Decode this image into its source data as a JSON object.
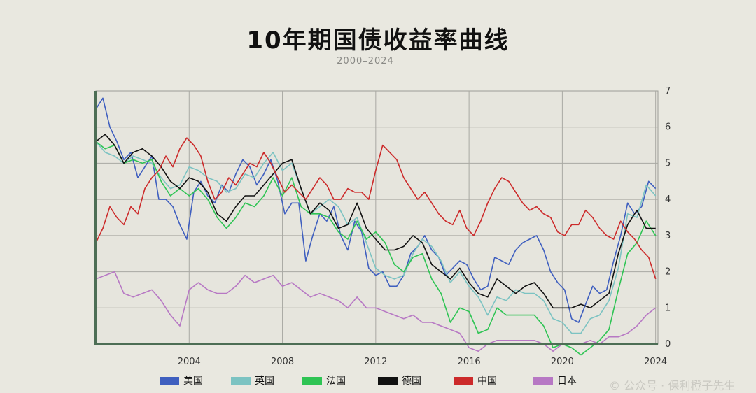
{
  "header": {
    "title": "10年期国债收益率曲线",
    "subtitle": "2000–2024"
  },
  "watermark": "© 公众号 · 保利橙子先生",
  "chart_data": {
    "type": "line",
    "title": "10年期国债收益率曲线",
    "subtitle": "2000–2024",
    "xlim": [
      2000.0,
      2024.1
    ],
    "ylim": [
      0,
      7
    ],
    "x_ticks": [
      "2004",
      "2008",
      "2012",
      "2016",
      "2020",
      "2024"
    ],
    "x_tick_values": [
      2004,
      2008,
      2012,
      2016,
      2020,
      2024
    ],
    "y_ticks": [
      "0",
      "1",
      "2",
      "3",
      "4",
      "5",
      "6",
      "7"
    ],
    "y_axis_side": "right",
    "grid": true,
    "legend_position": "bottom",
    "series": [
      {
        "name": "美国",
        "color": "#3f5fbf",
        "x": [
          2000.0,
          2000.3,
          2000.6,
          2000.9,
          2001.2,
          2001.5,
          2001.8,
          2002.1,
          2002.4,
          2002.7,
          2003.0,
          2003.3,
          2003.6,
          2003.9,
          2004.2,
          2004.5,
          2004.8,
          2005.1,
          2005.4,
          2005.7,
          2006.0,
          2006.3,
          2006.6,
          2006.9,
          2007.2,
          2007.5,
          2007.8,
          2008.1,
          2008.4,
          2008.7,
          2009.0,
          2009.3,
          2009.6,
          2009.9,
          2010.2,
          2010.5,
          2010.8,
          2011.1,
          2011.4,
          2011.7,
          2012.0,
          2012.3,
          2012.6,
          2012.9,
          2013.2,
          2013.5,
          2013.8,
          2014.1,
          2014.4,
          2014.7,
          2015.0,
          2015.3,
          2015.6,
          2015.9,
          2016.2,
          2016.5,
          2016.8,
          2017.1,
          2017.4,
          2017.7,
          2018.0,
          2018.3,
          2018.6,
          2018.9,
          2019.2,
          2019.5,
          2019.8,
          2020.1,
          2020.4,
          2020.7,
          2021.0,
          2021.3,
          2021.6,
          2021.9,
          2022.2,
          2022.5,
          2022.8,
          2023.1,
          2023.4,
          2023.7,
          2024.0
        ],
        "values": [
          6.5,
          6.8,
          6.0,
          5.6,
          5.1,
          5.3,
          4.6,
          4.9,
          5.2,
          4.0,
          4.0,
          3.8,
          3.3,
          2.9,
          4.2,
          4.5,
          4.1,
          3.9,
          4.4,
          4.2,
          4.7,
          5.1,
          4.9,
          4.4,
          4.7,
          5.1,
          4.5,
          3.6,
          3.9,
          3.9,
          2.3,
          3.0,
          3.6,
          3.4,
          3.8,
          3.0,
          2.6,
          3.4,
          3.1,
          2.1,
          1.9,
          2.0,
          1.6,
          1.6,
          1.9,
          2.5,
          2.7,
          3.0,
          2.6,
          2.4,
          1.9,
          2.1,
          2.3,
          2.2,
          1.8,
          1.5,
          1.6,
          2.4,
          2.3,
          2.2,
          2.6,
          2.8,
          2.9,
          3.0,
          2.6,
          2.0,
          1.7,
          1.5,
          0.7,
          0.6,
          1.1,
          1.6,
          1.4,
          1.5,
          2.3,
          3.0,
          3.9,
          3.6,
          3.8,
          4.5,
          4.3
        ]
      },
      {
        "name": "英国",
        "color": "#7cc3c2",
        "x": [
          2000.0,
          2000.4,
          2000.8,
          2001.2,
          2001.6,
          2002.0,
          2002.4,
          2002.8,
          2003.2,
          2003.6,
          2004.0,
          2004.4,
          2004.8,
          2005.2,
          2005.6,
          2006.0,
          2006.4,
          2006.8,
          2007.2,
          2007.6,
          2008.0,
          2008.4,
          2008.8,
          2009.2,
          2009.6,
          2010.0,
          2010.4,
          2010.8,
          2011.2,
          2011.6,
          2012.0,
          2012.4,
          2012.8,
          2013.2,
          2013.6,
          2014.0,
          2014.4,
          2014.8,
          2015.2,
          2015.6,
          2016.0,
          2016.4,
          2016.8,
          2017.2,
          2017.6,
          2018.0,
          2018.4,
          2018.8,
          2019.2,
          2019.6,
          2020.0,
          2020.4,
          2020.8,
          2021.2,
          2021.6,
          2022.0,
          2022.4,
          2022.8,
          2023.2,
          2023.6,
          2024.0
        ],
        "values": [
          5.6,
          5.3,
          5.2,
          5.0,
          5.2,
          5.1,
          5.0,
          4.6,
          4.3,
          4.4,
          4.9,
          4.8,
          4.6,
          4.5,
          4.2,
          4.3,
          4.7,
          4.6,
          5.0,
          5.3,
          4.8,
          5.0,
          4.3,
          3.6,
          3.8,
          4.0,
          3.8,
          3.3,
          3.5,
          2.8,
          2.1,
          1.9,
          1.8,
          1.9,
          2.5,
          2.9,
          2.7,
          2.3,
          1.7,
          2.0,
          1.6,
          1.3,
          0.8,
          1.3,
          1.2,
          1.5,
          1.4,
          1.4,
          1.2,
          0.7,
          0.6,
          0.3,
          0.3,
          0.7,
          0.8,
          1.2,
          2.1,
          3.6,
          3.5,
          4.4,
          4.1
        ]
      },
      {
        "name": "法国",
        "color": "#2fc454",
        "x": [
          2000.0,
          2000.4,
          2000.8,
          2001.2,
          2001.6,
          2002.0,
          2002.4,
          2002.8,
          2003.2,
          2003.6,
          2004.0,
          2004.4,
          2004.8,
          2005.2,
          2005.6,
          2006.0,
          2006.4,
          2006.8,
          2007.2,
          2007.6,
          2008.0,
          2008.4,
          2008.8,
          2009.2,
          2009.6,
          2010.0,
          2010.4,
          2010.8,
          2011.2,
          2011.6,
          2012.0,
          2012.4,
          2012.8,
          2013.2,
          2013.6,
          2014.0,
          2014.4,
          2014.8,
          2015.2,
          2015.6,
          2016.0,
          2016.4,
          2016.8,
          2017.2,
          2017.6,
          2018.0,
          2018.4,
          2018.8,
          2019.2,
          2019.6,
          2020.0,
          2020.4,
          2020.8,
          2021.2,
          2021.6,
          2022.0,
          2022.4,
          2022.8,
          2023.2,
          2023.6,
          2024.0
        ],
        "values": [
          5.6,
          5.4,
          5.5,
          5.0,
          5.1,
          5.0,
          5.1,
          4.5,
          4.1,
          4.3,
          4.1,
          4.3,
          4.0,
          3.5,
          3.2,
          3.5,
          3.9,
          3.8,
          4.1,
          4.6,
          4.1,
          4.6,
          3.8,
          3.6,
          3.6,
          3.5,
          3.1,
          2.9,
          3.4,
          2.9,
          3.1,
          2.8,
          2.2,
          2.0,
          2.4,
          2.5,
          1.8,
          1.4,
          0.6,
          1.0,
          0.9,
          0.3,
          0.4,
          1.0,
          0.8,
          0.8,
          0.8,
          0.8,
          0.5,
          -0.1,
          0.0,
          -0.1,
          -0.3,
          -0.1,
          0.1,
          0.4,
          1.5,
          2.5,
          2.8,
          3.4,
          3.0
        ]
      },
      {
        "name": "德国",
        "color": "#111111",
        "x": [
          2000.0,
          2000.4,
          2000.8,
          2001.2,
          2001.6,
          2002.0,
          2002.4,
          2002.8,
          2003.2,
          2003.6,
          2004.0,
          2004.4,
          2004.8,
          2005.2,
          2005.6,
          2006.0,
          2006.4,
          2006.8,
          2007.2,
          2007.6,
          2008.0,
          2008.4,
          2008.8,
          2009.2,
          2009.6,
          2010.0,
          2010.4,
          2010.8,
          2011.2,
          2011.6,
          2012.0,
          2012.4,
          2012.8,
          2013.2,
          2013.6,
          2014.0,
          2014.4,
          2014.8,
          2015.2,
          2015.6,
          2016.0,
          2016.4,
          2016.8,
          2017.2,
          2017.6,
          2018.0,
          2018.4,
          2018.8,
          2019.2,
          2019.6,
          2020.0,
          2020.4,
          2020.8,
          2021.2,
          2021.6,
          2022.0,
          2022.4,
          2022.8,
          2023.2,
          2023.6,
          2024.0
        ],
        "values": [
          5.6,
          5.8,
          5.5,
          5.0,
          5.3,
          5.4,
          5.2,
          4.9,
          4.5,
          4.3,
          4.6,
          4.5,
          4.2,
          3.6,
          3.4,
          3.8,
          4.1,
          4.1,
          4.4,
          4.7,
          5.0,
          5.1,
          4.3,
          3.6,
          3.9,
          3.7,
          3.2,
          3.3,
          3.9,
          3.2,
          2.9,
          2.6,
          2.6,
          2.7,
          3.0,
          2.8,
          2.2,
          2.0,
          1.8,
          2.1,
          1.7,
          1.4,
          1.3,
          1.8,
          1.6,
          1.4,
          1.6,
          1.7,
          1.4,
          1.0,
          1.0,
          1.0,
          1.1,
          1.0,
          1.2,
          1.4,
          2.5,
          3.3,
          3.7,
          3.2,
          3.2
        ]
      },
      {
        "name": "中国",
        "color": "#cc2a2a",
        "x": [
          2000.0,
          2000.3,
          2000.6,
          2000.9,
          2001.2,
          2001.5,
          2001.8,
          2002.1,
          2002.4,
          2002.7,
          2003.0,
          2003.3,
          2003.6,
          2003.9,
          2004.2,
          2004.5,
          2004.8,
          2005.1,
          2005.4,
          2005.7,
          2006.0,
          2006.3,
          2006.6,
          2006.9,
          2007.2,
          2007.5,
          2007.8,
          2008.1,
          2008.4,
          2008.7,
          2009.0,
          2009.3,
          2009.6,
          2009.9,
          2010.2,
          2010.5,
          2010.8,
          2011.1,
          2011.4,
          2011.7,
          2012.0,
          2012.3,
          2012.6,
          2012.9,
          2013.2,
          2013.5,
          2013.8,
          2014.1,
          2014.4,
          2014.7,
          2015.0,
          2015.3,
          2015.6,
          2015.9,
          2016.2,
          2016.5,
          2016.8,
          2017.1,
          2017.4,
          2017.7,
          2018.0,
          2018.3,
          2018.6,
          2018.9,
          2019.2,
          2019.5,
          2019.8,
          2020.1,
          2020.4,
          2020.7,
          2021.0,
          2021.3,
          2021.6,
          2021.9,
          2022.2,
          2022.5,
          2022.8,
          2023.1,
          2023.4,
          2023.7,
          2024.0
        ],
        "values": [
          2.8,
          3.2,
          3.8,
          3.5,
          3.3,
          3.8,
          3.6,
          4.3,
          4.6,
          4.8,
          5.2,
          4.9,
          5.4,
          5.7,
          5.5,
          5.2,
          4.5,
          4.0,
          4.2,
          4.6,
          4.4,
          4.7,
          5.0,
          4.9,
          5.3,
          5.0,
          4.6,
          4.2,
          4.4,
          4.2,
          4.0,
          4.3,
          4.6,
          4.4,
          4.0,
          4.0,
          4.3,
          4.2,
          4.2,
          4.0,
          4.8,
          5.5,
          5.3,
          5.1,
          4.6,
          4.3,
          4.0,
          4.2,
          3.9,
          3.6,
          3.4,
          3.3,
          3.7,
          3.2,
          3.0,
          3.4,
          3.9,
          4.3,
          4.6,
          4.5,
          4.2,
          3.9,
          3.7,
          3.8,
          3.6,
          3.5,
          3.1,
          3.0,
          3.3,
          3.3,
          3.7,
          3.5,
          3.2,
          3.0,
          2.9,
          3.4,
          3.1,
          2.9,
          2.6,
          2.4,
          1.8
        ]
      },
      {
        "name": "日本",
        "color": "#b778c4",
        "x": [
          2000.0,
          2000.4,
          2000.8,
          2001.2,
          2001.6,
          2002.0,
          2002.4,
          2002.8,
          2003.2,
          2003.6,
          2004.0,
          2004.4,
          2004.8,
          2005.2,
          2005.6,
          2006.0,
          2006.4,
          2006.8,
          2007.2,
          2007.6,
          2008.0,
          2008.4,
          2008.8,
          2009.2,
          2009.6,
          2010.0,
          2010.4,
          2010.8,
          2011.2,
          2011.6,
          2012.0,
          2012.4,
          2012.8,
          2013.2,
          2013.6,
          2014.0,
          2014.4,
          2014.8,
          2015.2,
          2015.6,
          2016.0,
          2016.4,
          2016.8,
          2017.2,
          2017.6,
          2018.0,
          2018.4,
          2018.8,
          2019.2,
          2019.6,
          2020.0,
          2020.4,
          2020.8,
          2021.2,
          2021.6,
          2022.0,
          2022.4,
          2022.8,
          2023.2,
          2023.6,
          2024.0
        ],
        "values": [
          1.8,
          1.9,
          2.0,
          1.4,
          1.3,
          1.4,
          1.5,
          1.2,
          0.8,
          0.5,
          1.5,
          1.7,
          1.5,
          1.4,
          1.4,
          1.6,
          1.9,
          1.7,
          1.8,
          1.9,
          1.6,
          1.7,
          1.5,
          1.3,
          1.4,
          1.3,
          1.2,
          1.0,
          1.3,
          1.0,
          1.0,
          0.9,
          0.8,
          0.7,
          0.8,
          0.6,
          0.6,
          0.5,
          0.4,
          0.3,
          -0.1,
          -0.2,
          0.0,
          0.1,
          0.1,
          0.1,
          0.1,
          0.1,
          0.0,
          -0.2,
          0.0,
          0.0,
          0.0,
          0.1,
          0.0,
          0.2,
          0.2,
          0.3,
          0.5,
          0.8,
          1.0
        ]
      }
    ]
  }
}
